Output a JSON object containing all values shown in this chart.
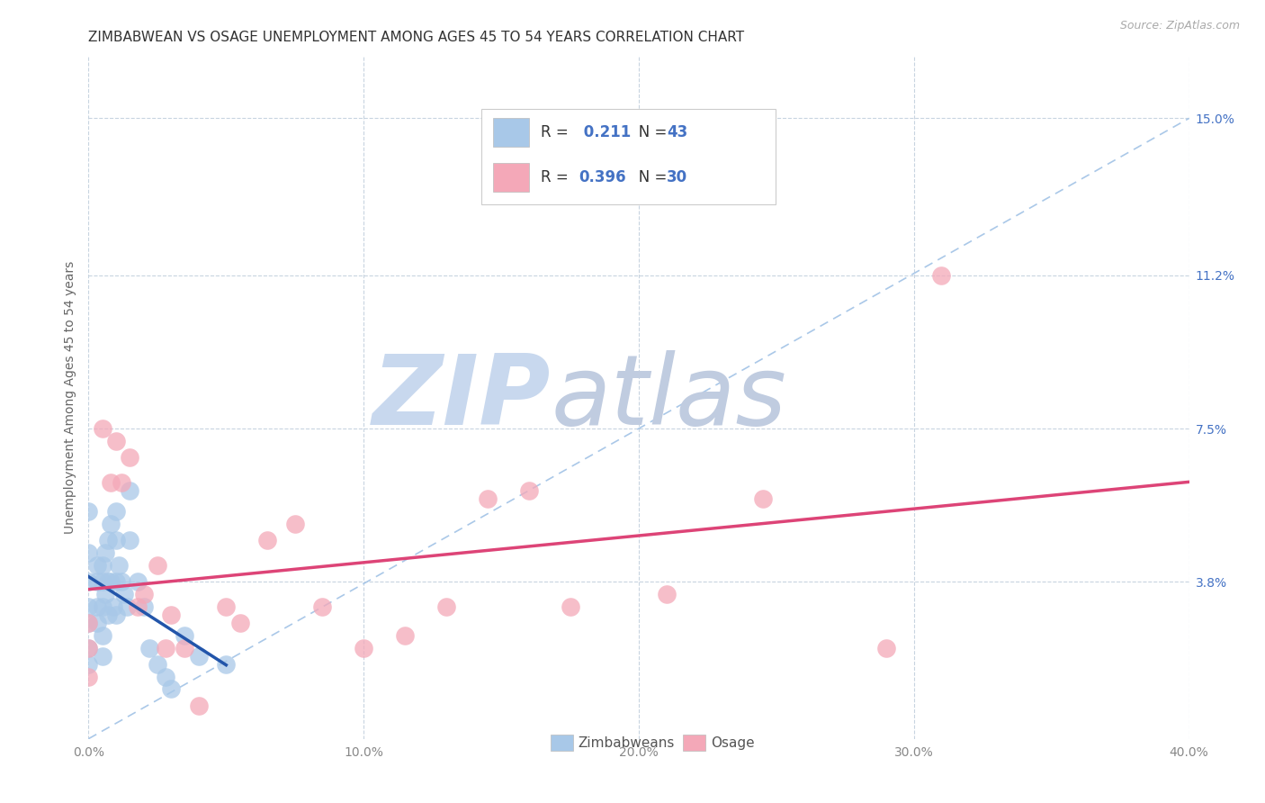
{
  "title": "ZIMBABWEAN VS OSAGE UNEMPLOYMENT AMONG AGES 45 TO 54 YEARS CORRELATION CHART",
  "source": "Source: ZipAtlas.com",
  "ylabel": "Unemployment Among Ages 45 to 54 years",
  "xlim": [
    0.0,
    0.4
  ],
  "ylim": [
    0.0,
    0.165
  ],
  "xticks": [
    0.0,
    0.1,
    0.2,
    0.3,
    0.4
  ],
  "xticklabels": [
    "0.0%",
    "10.0%",
    "20.0%",
    "30.0%",
    "40.0%"
  ],
  "ytick_positions": [
    0.038,
    0.075,
    0.112,
    0.15
  ],
  "ytick_labels": [
    "3.8%",
    "7.5%",
    "11.2%",
    "15.0%"
  ],
  "zim_color": "#a8c8e8",
  "osage_color": "#f4a8b8",
  "zim_line_color": "#2255aa",
  "osage_line_color": "#dd4477",
  "dashed_line_color": "#aac8e8",
  "watermark_zim": "ZIP",
  "watermark_atlas": "atlas",
  "watermark_color_zip": "#c8d8ee",
  "watermark_color_atlas": "#c0cce0",
  "background_color": "#ffffff",
  "grid_color": "#c8d4e0",
  "zim_x": [
    0.0,
    0.0,
    0.0,
    0.0,
    0.0,
    0.0,
    0.0,
    0.003,
    0.003,
    0.003,
    0.003,
    0.005,
    0.005,
    0.005,
    0.005,
    0.005,
    0.006,
    0.006,
    0.007,
    0.007,
    0.007,
    0.008,
    0.008,
    0.009,
    0.01,
    0.01,
    0.01,
    0.01,
    0.011,
    0.012,
    0.013,
    0.014,
    0.015,
    0.015,
    0.018,
    0.02,
    0.022,
    0.025,
    0.028,
    0.03,
    0.035,
    0.04,
    0.05
  ],
  "zim_y": [
    0.055,
    0.045,
    0.038,
    0.032,
    0.028,
    0.022,
    0.018,
    0.042,
    0.038,
    0.032,
    0.028,
    0.042,
    0.038,
    0.032,
    0.025,
    0.02,
    0.045,
    0.035,
    0.048,
    0.038,
    0.03,
    0.052,
    0.038,
    0.032,
    0.055,
    0.048,
    0.038,
    0.03,
    0.042,
    0.038,
    0.035,
    0.032,
    0.06,
    0.048,
    0.038,
    0.032,
    0.022,
    0.018,
    0.015,
    0.012,
    0.025,
    0.02,
    0.018
  ],
  "osage_x": [
    0.0,
    0.0,
    0.0,
    0.005,
    0.008,
    0.01,
    0.012,
    0.015,
    0.018,
    0.02,
    0.025,
    0.028,
    0.03,
    0.035,
    0.04,
    0.05,
    0.055,
    0.065,
    0.075,
    0.085,
    0.1,
    0.115,
    0.13,
    0.145,
    0.16,
    0.175,
    0.21,
    0.245,
    0.29,
    0.31
  ],
  "osage_y": [
    0.028,
    0.022,
    0.015,
    0.075,
    0.062,
    0.072,
    0.062,
    0.068,
    0.032,
    0.035,
    0.042,
    0.022,
    0.03,
    0.022,
    0.008,
    0.032,
    0.028,
    0.048,
    0.052,
    0.032,
    0.022,
    0.025,
    0.032,
    0.058,
    0.06,
    0.032,
    0.035,
    0.058,
    0.022,
    0.112
  ],
  "osage_x2": [
    0.3
  ],
  "osage_y2": [
    0.112
  ],
  "title_fontsize": 11,
  "axis_fontsize": 10,
  "tick_fontsize": 10,
  "legend_fontsize": 12,
  "zim_line_xstart": 0.0,
  "zim_line_xend": 0.05,
  "osage_line_xstart": 0.0,
  "osage_line_xend": 0.4
}
